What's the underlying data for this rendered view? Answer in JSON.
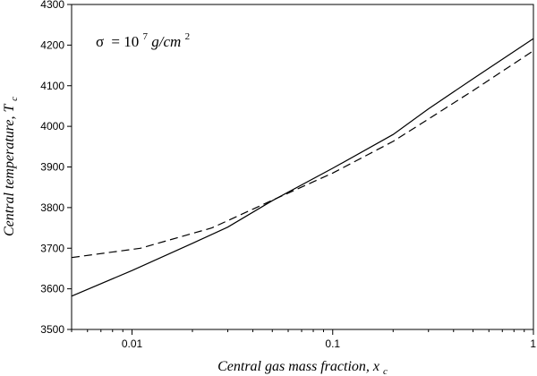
{
  "chart_data": {
    "type": "line",
    "xscale": "log",
    "xlim": [
      0.005,
      1
    ],
    "ylim": [
      3500,
      4300
    ],
    "xticks": [
      0.01,
      0.1,
      1
    ],
    "xtick_labels": [
      "0.01",
      "0.1",
      "1"
    ],
    "yticks": [
      3500,
      3600,
      3700,
      3800,
      3900,
      4000,
      4100,
      4200,
      4300
    ],
    "ytick_labels": [
      "3500",
      "3600",
      "3700",
      "3800",
      "3900",
      "4000",
      "4100",
      "4200",
      "4300"
    ],
    "xlabel": {
      "main": "Central gas mass fraction, x",
      "sub": "c"
    },
    "ylabel": {
      "main": "Central temperature, T",
      "sub": "c"
    },
    "annotation": {
      "sigma": "σ",
      "eq": "= 10",
      "exp": "7",
      "unit": "g/cm",
      "unit_exp": "2"
    },
    "grid": false,
    "series": [
      {
        "style": "solid",
        "x": [
          0.005,
          0.01,
          0.02,
          0.03,
          0.05,
          0.1,
          0.2,
          0.3,
          0.5,
          1.0
        ],
        "y": [
          3582,
          3645,
          3712,
          3752,
          3817,
          3897,
          3980,
          4043,
          4117,
          4216
        ]
      },
      {
        "style": "dashed",
        "x": [
          0.005,
          0.011,
          0.025,
          0.05,
          0.1,
          0.2,
          0.3,
          0.5,
          1.0
        ],
        "y": [
          3677,
          3700,
          3750,
          3818,
          3885,
          3963,
          4018,
          4088,
          4186
        ]
      }
    ]
  }
}
